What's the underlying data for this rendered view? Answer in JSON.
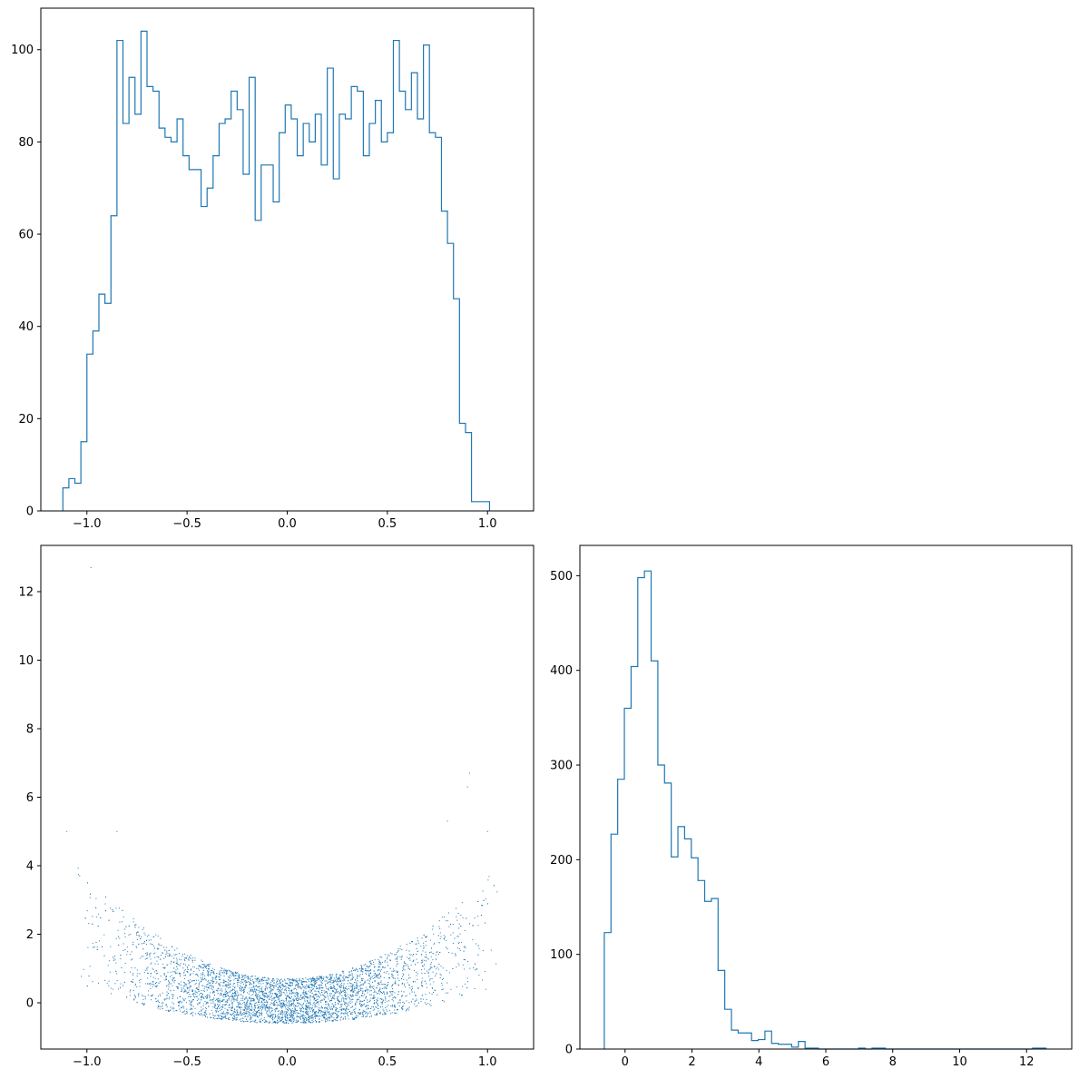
{
  "chart_data": [
    {
      "type": "histogram",
      "histtype": "step",
      "color": "#1f77b4",
      "xlim": [
        -1.23,
        1.23
      ],
      "ylim": [
        0,
        109
      ],
      "bin_start": -1.12,
      "bin_width": 0.03,
      "counts": [
        5,
        7,
        6,
        15,
        34,
        39,
        47,
        45,
        64,
        102,
        84,
        94,
        86,
        104,
        92,
        91,
        83,
        81,
        80,
        85,
        77,
        74,
        74,
        66,
        70,
        77,
        84,
        85,
        91,
        87,
        73,
        94,
        63,
        75,
        75,
        67,
        82,
        88,
        85,
        77,
        84,
        80,
        86,
        75,
        96,
        72,
        86,
        85,
        92,
        91,
        77,
        84,
        89,
        80,
        82,
        102,
        91,
        87,
        95,
        85,
        101,
        82,
        81,
        65,
        58,
        46,
        19,
        17,
        2,
        2,
        2
      ],
      "xticks": [
        -1.0,
        -0.5,
        0.0,
        0.5,
        1.0
      ],
      "xtick_labels": [
        "−1.0",
        "−0.5",
        "0.0",
        "0.5",
        "1.0"
      ],
      "yticks": [
        0,
        20,
        40,
        60,
        80,
        100
      ],
      "ytick_labels": [
        "0",
        "20",
        "40",
        "60",
        "80",
        "100"
      ]
    },
    {
      "type": "scatter",
      "color": "#1f77b4",
      "xlim": [
        -1.23,
        1.23
      ],
      "ylim": [
        -1.35,
        13.35
      ],
      "n_points": 5000,
      "approx_relation": "y ≈ 2·x² + noise, lower envelope ≈ x² − 0.6, upper envelope ≈ 3·x² + 0.7",
      "outliers": [
        [
          -0.98,
          12.7
        ],
        [
          0.91,
          6.7
        ],
        [
          0.9,
          6.3
        ],
        [
          0.8,
          5.3
        ],
        [
          -1.1,
          5.0
        ],
        [
          1.0,
          5.0
        ],
        [
          -0.85,
          5.0
        ]
      ],
      "xticks": [
        -1.0,
        -0.5,
        0.0,
        0.5,
        1.0
      ],
      "xtick_labels": [
        "−1.0",
        "−0.5",
        "0.0",
        "0.5",
        "1.0"
      ],
      "yticks": [
        0,
        2,
        4,
        6,
        8,
        10,
        12
      ],
      "ytick_labels": [
        "0",
        "2",
        "4",
        "6",
        "8",
        "10",
        "12"
      ]
    },
    {
      "type": "histogram",
      "histtype": "step",
      "color": "#1f77b4",
      "xlim": [
        -1.35,
        13.35
      ],
      "ylim": [
        0,
        532
      ],
      "bin_start": -0.62,
      "bin_width": 0.2,
      "counts": [
        123,
        227,
        285,
        360,
        404,
        498,
        505,
        410,
        300,
        281,
        203,
        235,
        222,
        202,
        178,
        156,
        159,
        83,
        42,
        20,
        17,
        17,
        9,
        10,
        19,
        6,
        5,
        5,
        2,
        8,
        1,
        1,
        0,
        0,
        0,
        0,
        0,
        0,
        1,
        0,
        1,
        1,
        0,
        0,
        0,
        0,
        0,
        0,
        0,
        0,
        0,
        0,
        0,
        0,
        0,
        0,
        0,
        0,
        0,
        0,
        0,
        0,
        0,
        0,
        1,
        1
      ],
      "xticks": [
        0,
        2,
        4,
        6,
        8,
        10,
        12
      ],
      "xtick_labels": [
        "0",
        "2",
        "4",
        "6",
        "8",
        "10",
        "12"
      ],
      "yticks": [
        0,
        100,
        200,
        300,
        400,
        500
      ],
      "ytick_labels": [
        "0",
        "100",
        "200",
        "300",
        "400",
        "500"
      ]
    }
  ]
}
